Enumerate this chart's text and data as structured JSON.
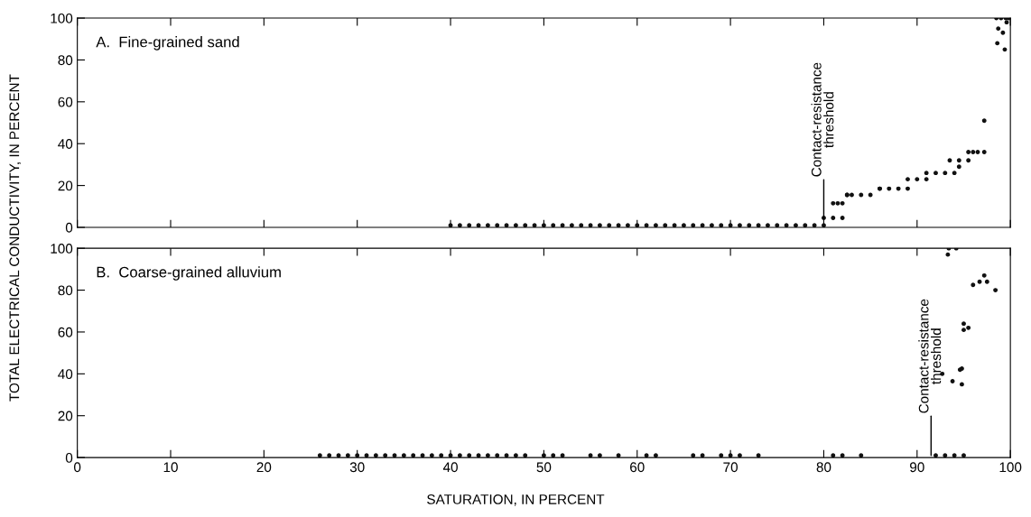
{
  "chart_data": [
    {
      "type": "scatter",
      "title": "A.  Fine-grained sand",
      "ylabel": "TOTAL ELECTRICAL CONDUCTIVITY, IN PERCENT",
      "xlim": [
        0,
        100
      ],
      "ylim": [
        0,
        100
      ],
      "xticks": [
        0,
        10,
        20,
        30,
        40,
        50,
        60,
        70,
        80,
        90,
        100
      ],
      "yticks": [
        0,
        20,
        40,
        60,
        80,
        100
      ],
      "tick_labels": "y",
      "marker": "circle",
      "grid": false,
      "annotations": [
        {
          "text": "Contact-resistance threshold",
          "x": 80,
          "y": 4
        }
      ],
      "series": [
        {
          "color": "#111111",
          "x": [
            40,
            41,
            42,
            43,
            44,
            45,
            46,
            47,
            48,
            49,
            50,
            51,
            52,
            53,
            54,
            55,
            56,
            57,
            58,
            59,
            60,
            61,
            62,
            63,
            64,
            65,
            66,
            67,
            68,
            69,
            70,
            71,
            72,
            73,
            74,
            75,
            76,
            77,
            78,
            79,
            80,
            80,
            81,
            82,
            81,
            81.5,
            82,
            82.5,
            82.5,
            83,
            84,
            85,
            86,
            86,
            87,
            88,
            89,
            89,
            90,
            91,
            91,
            92,
            93,
            94,
            94.5,
            93.5,
            94.5,
            95.5,
            96,
            95.5,
            96.5,
            97.2,
            97.2,
            98.5,
            99,
            99.5,
            99.8,
            98.7,
            99.2,
            99.6,
            98.6,
            99.4
          ],
          "values": [
            1,
            1,
            1,
            1,
            1,
            1,
            1,
            1,
            1,
            1,
            1,
            1,
            1,
            1,
            1,
            1,
            1,
            1,
            1,
            1,
            1,
            1,
            1,
            1,
            1,
            1,
            1,
            1,
            1,
            1,
            1,
            1,
            1,
            1,
            1,
            1,
            1,
            1,
            1,
            1,
            1,
            4.5,
            4.5,
            4.5,
            11.5,
            11.5,
            11.5,
            15.5,
            15.5,
            15.5,
            15.5,
            15.5,
            18.5,
            18.5,
            18.5,
            18.5,
            18.5,
            23,
            23,
            23,
            26,
            26,
            26,
            26,
            29,
            32,
            32,
            32,
            36,
            36,
            36,
            36,
            51,
            100,
            100,
            100,
            100,
            95,
            93,
            98,
            88,
            85
          ]
        }
      ]
    },
    {
      "type": "scatter",
      "title": "B.  Coarse-grained alluvium",
      "xlabel": "SATURATION, IN PERCENT",
      "xlim": [
        0,
        100
      ],
      "ylim": [
        0,
        100
      ],
      "xticks": [
        0,
        10,
        20,
        30,
        40,
        50,
        60,
        70,
        80,
        90,
        100
      ],
      "yticks": [
        0,
        20,
        40,
        60,
        80,
        100
      ],
      "marker": "circle",
      "grid": false,
      "annotations": [
        {
          "text": "Contact-resistance threshold",
          "x": 91.5,
          "y": 1
        }
      ],
      "series": [
        {
          "color": "#111111",
          "x": [
            26,
            27,
            28,
            29,
            30,
            31,
            32,
            33,
            34,
            35,
            36,
            37,
            38,
            39,
            40,
            41,
            42,
            43,
            44,
            45,
            46,
            47,
            48,
            50,
            51,
            52,
            55,
            56,
            58,
            61,
            62,
            66,
            67,
            69,
            70,
            71,
            73,
            81,
            82,
            84,
            92,
            93,
            94,
            95,
            93.4,
            94.2,
            93.3,
            97.2,
            96.7,
            97.5,
            96,
            98.4,
            95,
            95.5,
            95,
            94.8,
            94.6,
            92.7,
            93.8,
            94.8
          ],
          "values": [
            1,
            1,
            1,
            1,
            1,
            1,
            1,
            1,
            1,
            1,
            1,
            1,
            1,
            1,
            1,
            1,
            1,
            1,
            1,
            1,
            1,
            1,
            1,
            1,
            1,
            1,
            1,
            1,
            1,
            1,
            1,
            1,
            1,
            1,
            1,
            1,
            1,
            1,
            1,
            1,
            1,
            1,
            1,
            1,
            100,
            100,
            97,
            87,
            84,
            84,
            82.5,
            80,
            64,
            62,
            61,
            42.5,
            42,
            40,
            36.5,
            35
          ]
        }
      ]
    }
  ]
}
